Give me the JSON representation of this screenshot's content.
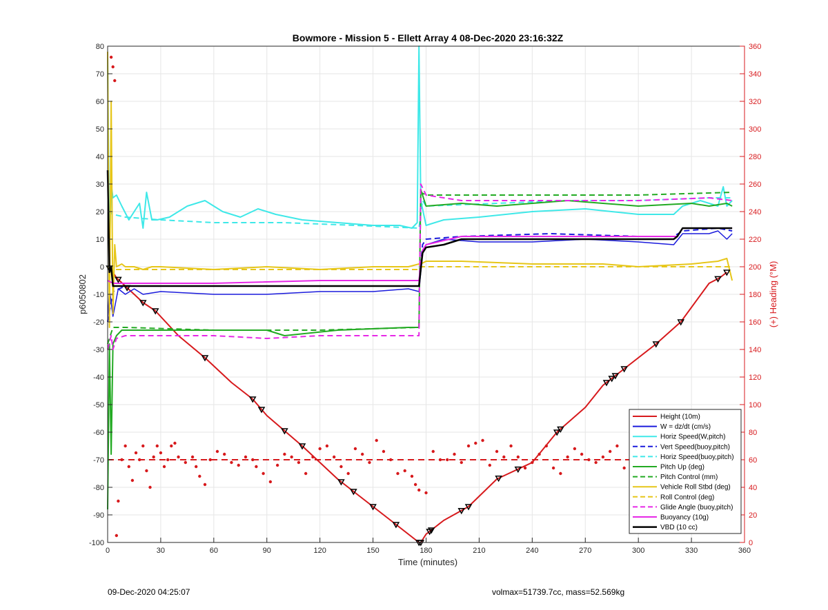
{
  "chart_data": {
    "type": "line",
    "title": "Bowmore - Mission 5 - Ellett Array 4 08-Dec-2020 23:16:32Z",
    "xlabel": "Time (minutes)",
    "ylabel": "p6050802",
    "y2label": "(+) Heading (°M)",
    "xlim": [
      0,
      360
    ],
    "ylim": [
      -100,
      80
    ],
    "y2lim": [
      0,
      360
    ],
    "grid": true,
    "legend_position": "bottom-right",
    "xticks": [
      "0",
      "30",
      "60",
      "90",
      "120",
      "150",
      "180",
      "210",
      "240",
      "270",
      "300",
      "330",
      "360"
    ],
    "yticks": [
      "80",
      "70",
      "60",
      "50",
      "40",
      "30",
      "20",
      "10",
      "0",
      "-10",
      "-20",
      "-30",
      "-40",
      "-50",
      "-60",
      "-70",
      "-80",
      "-90",
      "-100"
    ],
    "y2ticks": [
      "360",
      "340",
      "320",
      "300",
      "280",
      "260",
      "240",
      "220",
      "200",
      "180",
      "160",
      "140",
      "120",
      "100",
      "80",
      "60",
      "40",
      "20",
      "0"
    ],
    "colors": {
      "height": "#d7191c",
      "w": "#1a1adc",
      "horiz": "#3ee8e8",
      "vert_buoy": "#1a1adc",
      "horiz_buoy": "#3ee8e8",
      "pitch": "#22aa22",
      "pitch_control": "#22aa22",
      "roll": "#e6c619",
      "roll_control": "#e6c619",
      "glide": "#e627e6",
      "buoyancy": "#e627e6",
      "vbd": "#000000"
    },
    "series": [
      {
        "name": "Height (10m)",
        "color": "#d7191c",
        "dash": "",
        "width": 2,
        "x": [
          0,
          2,
          5,
          10,
          20,
          27,
          40,
          55,
          70,
          82,
          90,
          110,
          130,
          150,
          162,
          176,
          177,
          180,
          190,
          204,
          220,
          240,
          254,
          270,
          280,
          292,
          310,
          324,
          340,
          346,
          350
        ],
        "y": [
          0,
          -1,
          -4,
          -7,
          -13,
          -16,
          -25,
          -33,
          -42,
          -48,
          -54,
          -65,
          -77,
          -87,
          -93,
          -100,
          -100,
          -97,
          -92,
          -87,
          -77,
          -71,
          -60,
          -51,
          -43,
          -37,
          -28,
          -20,
          -6,
          -4,
          -2
        ],
        "markers": [
          1,
          6,
          11,
          20,
          27,
          55,
          82,
          87,
          100,
          110,
          132,
          139,
          150,
          163,
          176,
          177,
          182,
          183,
          200,
          204,
          221,
          232,
          254,
          256,
          282,
          285,
          287,
          292,
          310,
          324,
          345,
          350
        ]
      },
      {
        "name": "W = dz/dt (cm/s)",
        "color": "#1a1adc",
        "dash": "",
        "width": 1.5,
        "x": [
          0,
          1,
          3,
          6,
          10,
          15,
          20,
          30,
          60,
          90,
          120,
          150,
          170,
          176,
          178,
          180,
          190,
          210,
          240,
          270,
          300,
          320,
          325,
          340,
          345,
          350,
          353
        ],
        "y": [
          -20,
          -8,
          -18,
          -8,
          -10,
          -8,
          -10,
          -9,
          -10,
          -10,
          -9,
          -9,
          -8,
          -9,
          5,
          8,
          10,
          9,
          9,
          10,
          9,
          8,
          12,
          12,
          13,
          10,
          12
        ]
      },
      {
        "name": "Horiz Speed(W,pitch)",
        "color": "#3ee8e8",
        "dash": "",
        "width": 2,
        "x": [
          0,
          1,
          2,
          3,
          5,
          8,
          12,
          18,
          20,
          22,
          25,
          28,
          35,
          45,
          55,
          65,
          75,
          85,
          95,
          110,
          130,
          150,
          165,
          172,
          175,
          176,
          177,
          180,
          190,
          210,
          240,
          270,
          300,
          320,
          325,
          335,
          345,
          348,
          350,
          353
        ],
        "y": [
          76,
          5,
          30,
          25,
          26,
          22,
          17,
          23,
          14,
          27,
          17,
          17,
          18,
          22,
          24,
          20,
          18,
          21,
          19,
          17,
          16,
          15,
          15,
          14,
          16,
          80,
          24,
          15,
          17,
          18,
          20,
          21,
          19,
          19,
          22,
          24,
          22,
          29,
          22,
          24
        ]
      },
      {
        "name": "Vert Speed(buoy,pitch)",
        "color": "#1a1adc",
        "dash": "8,5",
        "width": 2,
        "x": [
          0,
          3,
          10,
          60,
          120,
          176,
          178,
          180,
          200,
          250,
          300,
          320,
          325,
          345,
          353
        ],
        "y": [
          -20,
          -9,
          -7,
          -7,
          -7,
          -7,
          8,
          10,
          11,
          12,
          11,
          11,
          13,
          14,
          13
        ]
      },
      {
        "name": "Horiz Speed(buoy,pitch)",
        "color": "#3ee8e8",
        "dash": "8,5",
        "width": 2,
        "x": [
          0,
          3,
          10,
          30,
          60,
          100,
          140,
          176,
          178,
          180,
          220,
          260,
          300,
          340,
          353
        ],
        "y": [
          20,
          19,
          18,
          17,
          16,
          16,
          15,
          14,
          24,
          22,
          23,
          24,
          24,
          25,
          25
        ]
      },
      {
        "name": "Pitch Up (deg)",
        "color": "#22aa22",
        "dash": "",
        "width": 2,
        "x": [
          0,
          1,
          2,
          3,
          5,
          8,
          15,
          30,
          60,
          90,
          100,
          130,
          170,
          176,
          177,
          180,
          200,
          220,
          240,
          260,
          280,
          300,
          330,
          340,
          350,
          353
        ],
        "y": [
          -88,
          -28,
          -68,
          -28,
          -25,
          -23,
          -23,
          -23,
          -23,
          -23,
          -25,
          -23,
          -22,
          -22,
          28,
          22,
          23,
          22,
          23,
          24,
          23,
          22,
          23,
          22,
          23,
          22
        ]
      },
      {
        "name": "Pitch Control (mm)",
        "color": "#22aa22",
        "dash": "8,5",
        "width": 2,
        "x": [
          0,
          3,
          10,
          60,
          120,
          176,
          177,
          180,
          240,
          300,
          353
        ],
        "y": [
          -28,
          -22,
          -22,
          -23,
          -23,
          -22,
          27,
          26,
          26,
          26,
          27
        ]
      },
      {
        "name": "Vehicle Roll Stbd (deg)",
        "color": "#e6c619",
        "dash": "",
        "width": 2,
        "x": [
          0,
          1,
          2,
          3,
          4,
          5,
          8,
          10,
          15,
          20,
          25,
          30,
          60,
          90,
          120,
          150,
          170,
          176,
          177,
          180,
          200,
          240,
          280,
          300,
          330,
          345,
          350,
          353
        ],
        "y": [
          78,
          -22,
          60,
          -17,
          8,
          0,
          1,
          0,
          0,
          -1,
          0,
          0,
          -1,
          0,
          -1,
          0,
          0,
          1,
          1,
          2,
          2,
          1,
          1,
          0,
          1,
          2,
          3,
          -5
        ]
      },
      {
        "name": "Roll Control (deg)",
        "color": "#e6c619",
        "dash": "8,5",
        "width": 2,
        "x": [
          0,
          3,
          10,
          176,
          177,
          180,
          353
        ],
        "y": [
          0,
          -1,
          -1,
          -1,
          0,
          0,
          0
        ]
      },
      {
        "name": "Glide Angle (buoy,pitch)",
        "color": "#e627e6",
        "dash": "8,5",
        "width": 2,
        "x": [
          0,
          2,
          3,
          5,
          10,
          30,
          60,
          90,
          120,
          150,
          176,
          177,
          180,
          200,
          240,
          300,
          340,
          353
        ],
        "y": [
          -30,
          -25,
          -30,
          -26,
          -25,
          -25,
          -25,
          -26,
          -25,
          -25,
          -25,
          30,
          26,
          24,
          24,
          24,
          25,
          24
        ]
      },
      {
        "name": "Buoyancy (10g)",
        "color": "#e627e6",
        "dash": "",
        "width": 2,
        "x": [
          0,
          3,
          10,
          60,
          120,
          176,
          178,
          180,
          200,
          240,
          300,
          322,
          325,
          350,
          353
        ],
        "y": [
          -5,
          -6,
          -6,
          -6,
          -5,
          -5,
          6,
          8,
          11,
          11,
          11,
          11,
          14,
          14,
          14
        ]
      },
      {
        "name": "VBD (10 cc)",
        "color": "#000000",
        "dash": "",
        "width": 2.5,
        "x": [
          0,
          1,
          2,
          3,
          176,
          178,
          180,
          190,
          200,
          240,
          280,
          320,
          322,
          325,
          350,
          353
        ],
        "y": [
          35,
          -2,
          0,
          -7,
          -7,
          5,
          7,
          8,
          10,
          10,
          10,
          10,
          11,
          14,
          14,
          14
        ]
      }
    ],
    "heading_mean": 60,
    "heading_scatter": [
      [
        2,
        352
      ],
      [
        3,
        345
      ],
      [
        4,
        335
      ],
      [
        5,
        5
      ],
      [
        6,
        30
      ],
      [
        8,
        60
      ],
      [
        10,
        70
      ],
      [
        12,
        55
      ],
      [
        14,
        45
      ],
      [
        16,
        65
      ],
      [
        18,
        60
      ],
      [
        20,
        70
      ],
      [
        22,
        52
      ],
      [
        24,
        40
      ],
      [
        26,
        62
      ],
      [
        28,
        70
      ],
      [
        30,
        65
      ],
      [
        32,
        55
      ],
      [
        34,
        60
      ],
      [
        36,
        70
      ],
      [
        38,
        72
      ],
      [
        40,
        62
      ],
      [
        44,
        58
      ],
      [
        48,
        62
      ],
      [
        50,
        55
      ],
      [
        52,
        48
      ],
      [
        55,
        42
      ],
      [
        58,
        60
      ],
      [
        62,
        66
      ],
      [
        66,
        64
      ],
      [
        70,
        58
      ],
      [
        74,
        56
      ],
      [
        78,
        62
      ],
      [
        82,
        60
      ],
      [
        84,
        55
      ],
      [
        88,
        50
      ],
      [
        92,
        44
      ],
      [
        96,
        56
      ],
      [
        100,
        64
      ],
      [
        104,
        62
      ],
      [
        108,
        58
      ],
      [
        112,
        50
      ],
      [
        116,
        62
      ],
      [
        120,
        68
      ],
      [
        124,
        70
      ],
      [
        128,
        62
      ],
      [
        132,
        55
      ],
      [
        136,
        50
      ],
      [
        140,
        68
      ],
      [
        144,
        64
      ],
      [
        148,
        58
      ],
      [
        152,
        74
      ],
      [
        156,
        66
      ],
      [
        160,
        60
      ],
      [
        164,
        50
      ],
      [
        168,
        52
      ],
      [
        172,
        48
      ],
      [
        174,
        42
      ],
      [
        176,
        38
      ],
      [
        180,
        36
      ],
      [
        184,
        66
      ],
      [
        188,
        60
      ],
      [
        192,
        60
      ],
      [
        196,
        64
      ],
      [
        200,
        58
      ],
      [
        204,
        70
      ],
      [
        208,
        72
      ],
      [
        212,
        74
      ],
      [
        216,
        56
      ],
      [
        220,
        66
      ],
      [
        224,
        62
      ],
      [
        228,
        70
      ],
      [
        232,
        62
      ],
      [
        236,
        54
      ],
      [
        240,
        58
      ],
      [
        244,
        64
      ],
      [
        248,
        70
      ],
      [
        252,
        54
      ],
      [
        256,
        50
      ],
      [
        260,
        62
      ],
      [
        264,
        68
      ],
      [
        268,
        64
      ],
      [
        272,
        60
      ],
      [
        276,
        58
      ],
      [
        280,
        62
      ],
      [
        284,
        66
      ],
      [
        288,
        70
      ],
      [
        292,
        54
      ],
      [
        296,
        72
      ],
      [
        300,
        68
      ],
      [
        304,
        64
      ],
      [
        308,
        58
      ],
      [
        312,
        50
      ],
      [
        316,
        60
      ],
      [
        320,
        66
      ],
      [
        324,
        72
      ],
      [
        328,
        64
      ],
      [
        332,
        58
      ],
      [
        336,
        62
      ],
      [
        340,
        72
      ],
      [
        344,
        44
      ],
      [
        346,
        80
      ],
      [
        348,
        62
      ],
      [
        350,
        66
      ],
      [
        352,
        56
      ]
    ]
  },
  "footer": {
    "timestamp": "09-Dec-2020 04:25:07",
    "vehicle_info": "volmax=51739.7cc, mass=52.569kg"
  }
}
